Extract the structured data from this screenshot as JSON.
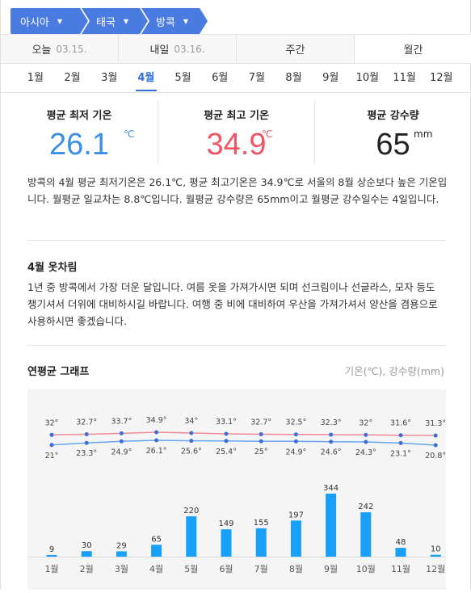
{
  "breadcrumb": [
    {
      "label": "아시아"
    },
    {
      "label": "태국"
    },
    {
      "label": "방콕"
    }
  ],
  "day_tabs": [
    {
      "label": "오늘",
      "date": "03.15."
    },
    {
      "label": "내일",
      "date": "03.16."
    },
    {
      "label": "주간",
      "date": ""
    },
    {
      "label": "월간",
      "date": ""
    }
  ],
  "active_day_tab": 3,
  "months": [
    "1월",
    "2월",
    "3월",
    "4월",
    "5월",
    "6월",
    "7월",
    "8월",
    "9월",
    "10월",
    "11월",
    "12월"
  ],
  "active_month": 3,
  "stats": {
    "min": {
      "label": "평균 최저 기온",
      "value": "26.1",
      "unit": "℃"
    },
    "max": {
      "label": "평균 최고 기온",
      "value": "34.9",
      "unit": "℃"
    },
    "rain": {
      "label": "평균 강수량",
      "value": "65",
      "unit": "mm"
    }
  },
  "description": "방콕의 4월 평균 최저기온은 26.1℃, 평균 최고기온은 34.9℃로 서울의 8월 상순보다 높은 기온입니다. 월평균 일교차는 8.8℃입니다. 월평균 강수량은 65mm이고 월평균 강수일수는 4일입니다.",
  "clothes": {
    "title": "4월 옷차림",
    "text": "1년 중 방콕에서 가장 더운 달입니다. 여름 옷을 가져가시면 되며 선크림이나 선글라스, 모자 등도 챙기셔서 더위에 대비하시길 바랍니다. 여행 중 비에 대비하여 우산을 가져가셔서 양산을 겸용으로 사용하시면 좋겠습니다."
  },
  "graph": {
    "title": "연평균 그래프",
    "unit_label": "기온(℃), 강수량(mm)"
  },
  "chart_data": {
    "type": "bar",
    "categories": [
      "1월",
      "2월",
      "3월",
      "4월",
      "5월",
      "6월",
      "7월",
      "8월",
      "9월",
      "10월",
      "11월",
      "12월"
    ],
    "series": [
      {
        "kind": "line",
        "values": [
          32,
          32.7,
          33.7,
          34.9,
          34,
          33.1,
          32.7,
          32.5,
          32.3,
          32,
          31.6,
          31.3
        ],
        "labels": [
          "32°",
          "32.7°",
          "33.7°",
          "34.9°",
          "34°",
          "33.1°",
          "32.7°",
          "32.5°",
          "32.3°",
          "32°",
          "31.6°",
          "31.3°"
        ],
        "color": "#f08a96"
      },
      {
        "kind": "line",
        "values": [
          21,
          23.3,
          24.9,
          26.1,
          25.6,
          25.4,
          25,
          24.9,
          24.6,
          24.3,
          23.1,
          20.8
        ],
        "labels": [
          "21°",
          "23.3°",
          "24.9°",
          "26.1°",
          "25.6°",
          "25.4°",
          "25°",
          "24.9°",
          "24.6°",
          "24.3°",
          "23.1°",
          "20.8°"
        ],
        "color": "#6aa6ee"
      },
      {
        "kind": "bar",
        "values": [
          9,
          30,
          29,
          65,
          220,
          149,
          155,
          197,
          344,
          242,
          48,
          10
        ],
        "color": "#18a0f8"
      }
    ],
    "colors": {
      "line_dot": "#3b6fd8",
      "bar": "#18a0f8"
    }
  }
}
